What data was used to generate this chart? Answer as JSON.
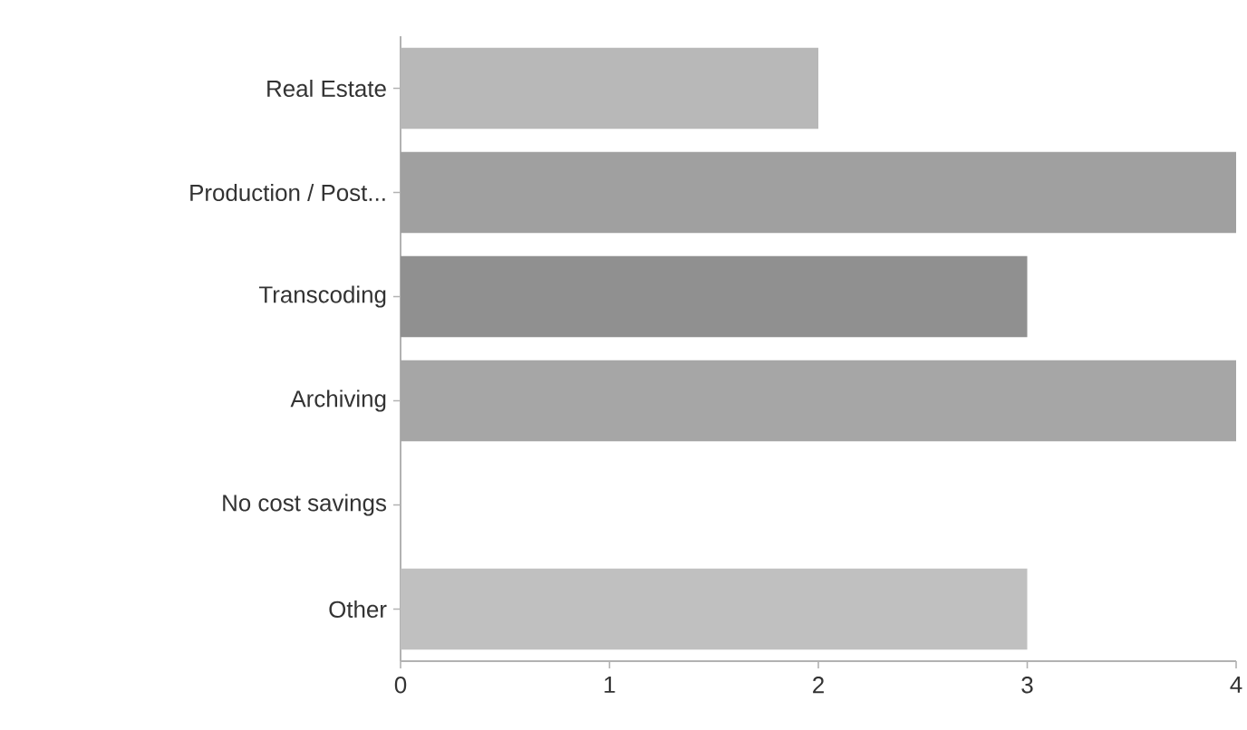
{
  "chart_data": {
    "type": "bar",
    "orientation": "horizontal",
    "categories": [
      "Real Estate",
      "Production / Post...",
      "Transcoding",
      "Archiving",
      "No cost savings",
      "Other"
    ],
    "values": [
      2,
      4,
      3,
      4,
      0,
      3
    ],
    "colors": [
      "#b8b8b8",
      "#a0a0a0",
      "#909090",
      "#a6a6a6",
      "#bebebe",
      "#c0c0c0"
    ],
    "xlim": [
      0,
      4
    ],
    "xticks": [
      0,
      1,
      2,
      3,
      4
    ],
    "grid": false
  }
}
